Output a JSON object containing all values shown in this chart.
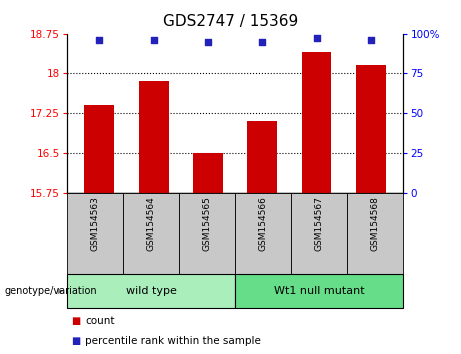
{
  "title": "GDS2747 / 15369",
  "samples": [
    "GSM154563",
    "GSM154564",
    "GSM154565",
    "GSM154566",
    "GSM154567",
    "GSM154568"
  ],
  "bar_values": [
    17.4,
    17.85,
    16.5,
    17.1,
    18.4,
    18.15
  ],
  "percentile_values": [
    96,
    96,
    95,
    95,
    97,
    96
  ],
  "bar_color": "#cc0000",
  "percentile_color": "#2222bb",
  "ylim_left": [
    15.75,
    18.75
  ],
  "ylim_right": [
    0,
    100
  ],
  "yticks_left": [
    15.75,
    16.5,
    17.25,
    18.0,
    18.75
  ],
  "ytick_labels_left": [
    "15.75",
    "16.5",
    "17.25",
    "18",
    "18.75"
  ],
  "yticks_right": [
    0,
    25,
    50,
    75,
    100
  ],
  "ytick_labels_right": [
    "0",
    "25",
    "50",
    "75",
    "100%"
  ],
  "grid_lines": [
    16.5,
    17.25,
    18.0
  ],
  "groups": [
    {
      "label": "wild type",
      "start": 0,
      "end": 3,
      "color": "#aaeebb"
    },
    {
      "label": "Wt1 null mutant",
      "start": 3,
      "end": 6,
      "color": "#66dd88"
    }
  ],
  "genotype_label": "genotype/variation",
  "legend_count_label": "count",
  "legend_percentile_label": "percentile rank within the sample",
  "background_color": "#ffffff",
  "label_area_color": "#c8c8c8",
  "bar_width": 0.55,
  "title_fontsize": 11
}
